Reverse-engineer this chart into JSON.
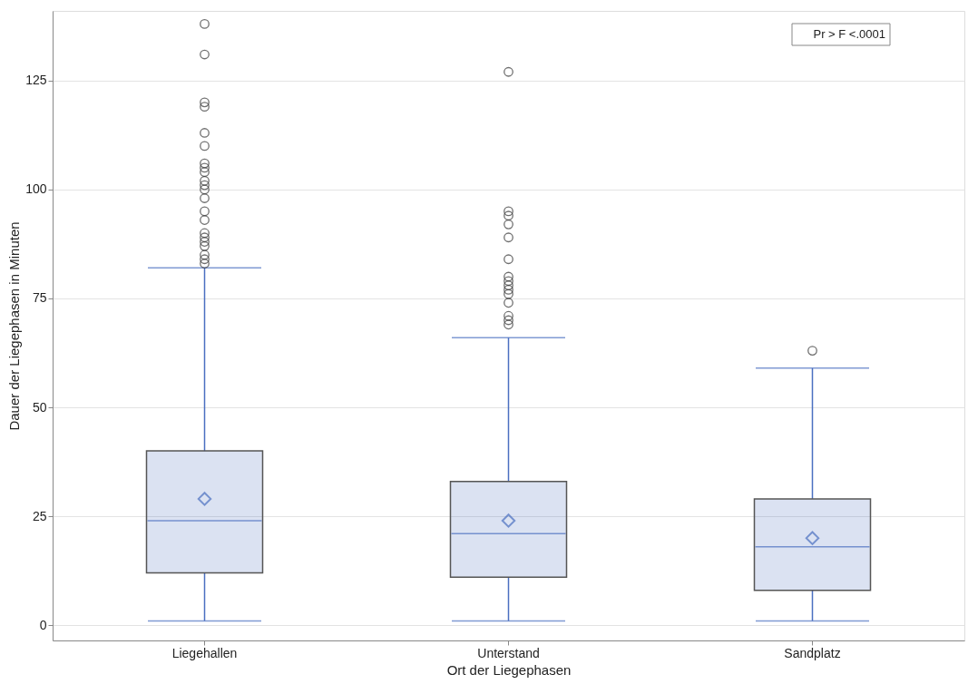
{
  "chart_data": {
    "type": "box",
    "xlabel": "Ort der Liegephasen",
    "ylabel": "Dauer der Liegephasen in Minuten",
    "categories": [
      "Liegehallen",
      "Unterstand",
      "Sandplatz"
    ],
    "series": [
      {
        "color": "#4a6fc0",
        "boxes": [
          {
            "low": 1,
            "q1": 12,
            "median": 24,
            "q3": 40,
            "high": 82,
            "mean": 29,
            "outliers": [
              138,
              131,
              120,
              119,
              113,
              110,
              106,
              105,
              104,
              102,
              101,
              100,
              98,
              95,
              93,
              90,
              89,
              88,
              87,
              85,
              84,
              83
            ]
          },
          {
            "low": 1,
            "q1": 11,
            "median": 21,
            "q3": 33,
            "high": 66,
            "mean": 24,
            "outliers": [
              127,
              95,
              94,
              92,
              89,
              84,
              80,
              79,
              78,
              77,
              76,
              74,
              71,
              70,
              69
            ]
          },
          {
            "low": 1,
            "q1": 8,
            "median": 18,
            "q3": 29,
            "high": 59,
            "mean": 20,
            "outliers": [
              63
            ]
          }
        ]
      }
    ],
    "ylim": [
      -3.5,
      141
    ],
    "yticks": [
      0,
      25,
      50,
      75,
      100,
      125
    ],
    "grid": "y",
    "annotations": [
      "Pr > F   <.0001"
    ]
  }
}
